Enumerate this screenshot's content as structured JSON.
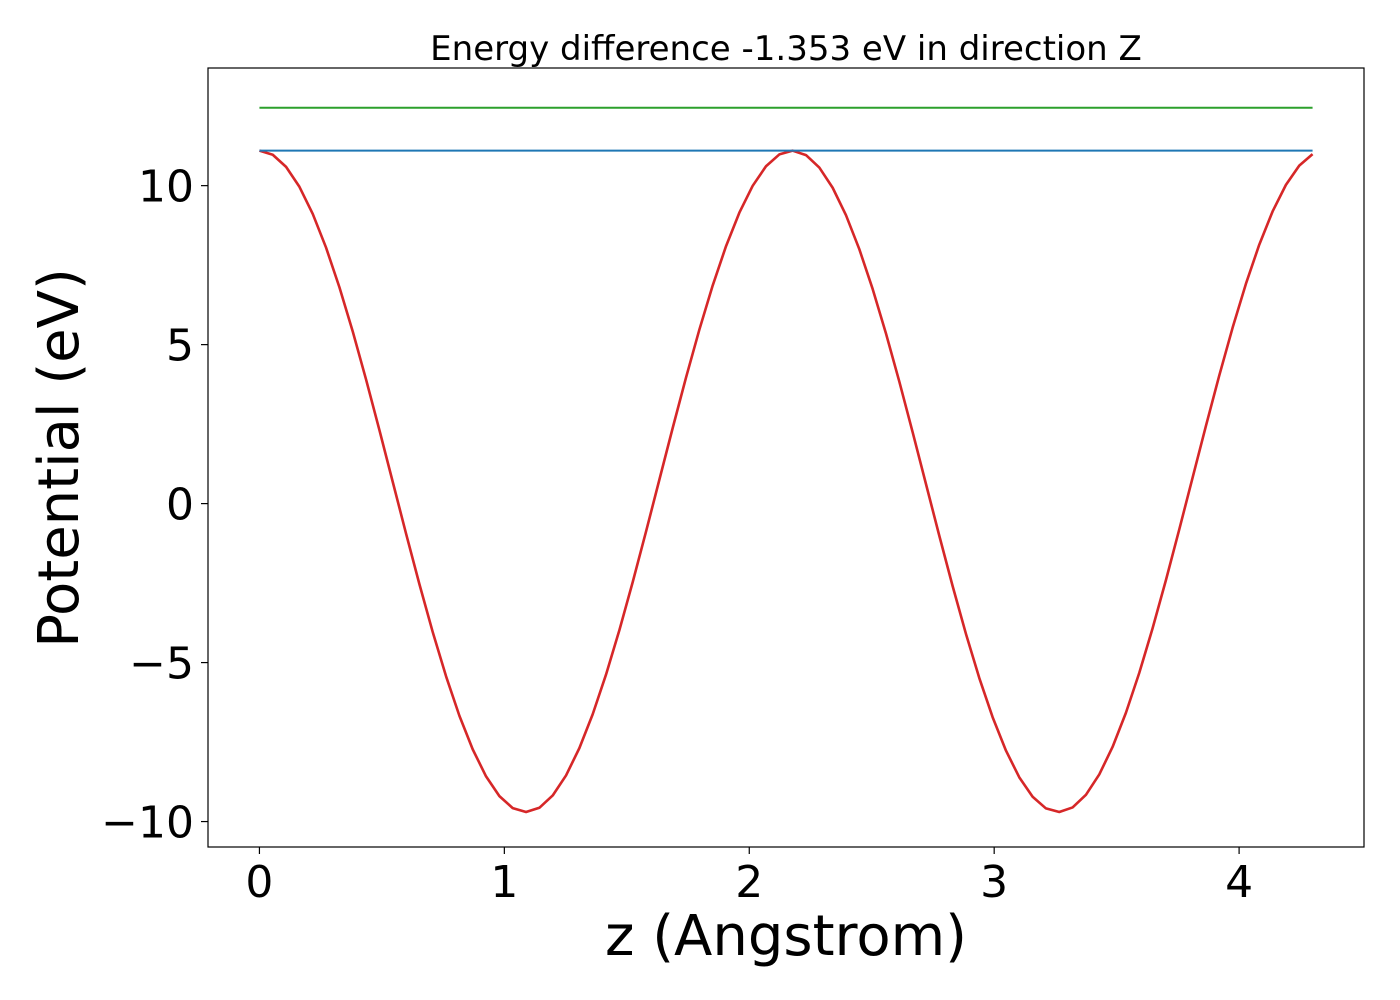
{
  "chart_data": {
    "type": "line",
    "title": "Energy difference -1.353 eV in direction Z",
    "xlabel": "z (Angstrom)",
    "ylabel": "Potential (eV)",
    "xlim": [
      -0.21,
      4.51
    ],
    "ylim": [
      -10.8,
      13.7
    ],
    "xticks": [
      0,
      1,
      2,
      3,
      4
    ],
    "yticks": [
      -10,
      -5,
      0,
      5,
      10
    ],
    "ytick_labels": [
      "−10",
      "−5",
      "0",
      "5",
      "10"
    ],
    "grid": false,
    "legend": "none",
    "period": 2.175,
    "series": [
      {
        "role": "potential-curve",
        "color": "#d62728",
        "x_start": 0.0,
        "x_end": 4.3,
        "num_points": 80,
        "min": -9.7,
        "max": 11.1
      },
      {
        "role": "horizontal-line",
        "color": "#1f77b4",
        "x": [
          0.0,
          4.3
        ],
        "y": [
          11.1,
          11.1
        ]
      },
      {
        "role": "horizontal-line",
        "color": "#2ca02c",
        "x": [
          0.0,
          4.3
        ],
        "y": [
          12.45,
          12.45
        ]
      }
    ]
  }
}
